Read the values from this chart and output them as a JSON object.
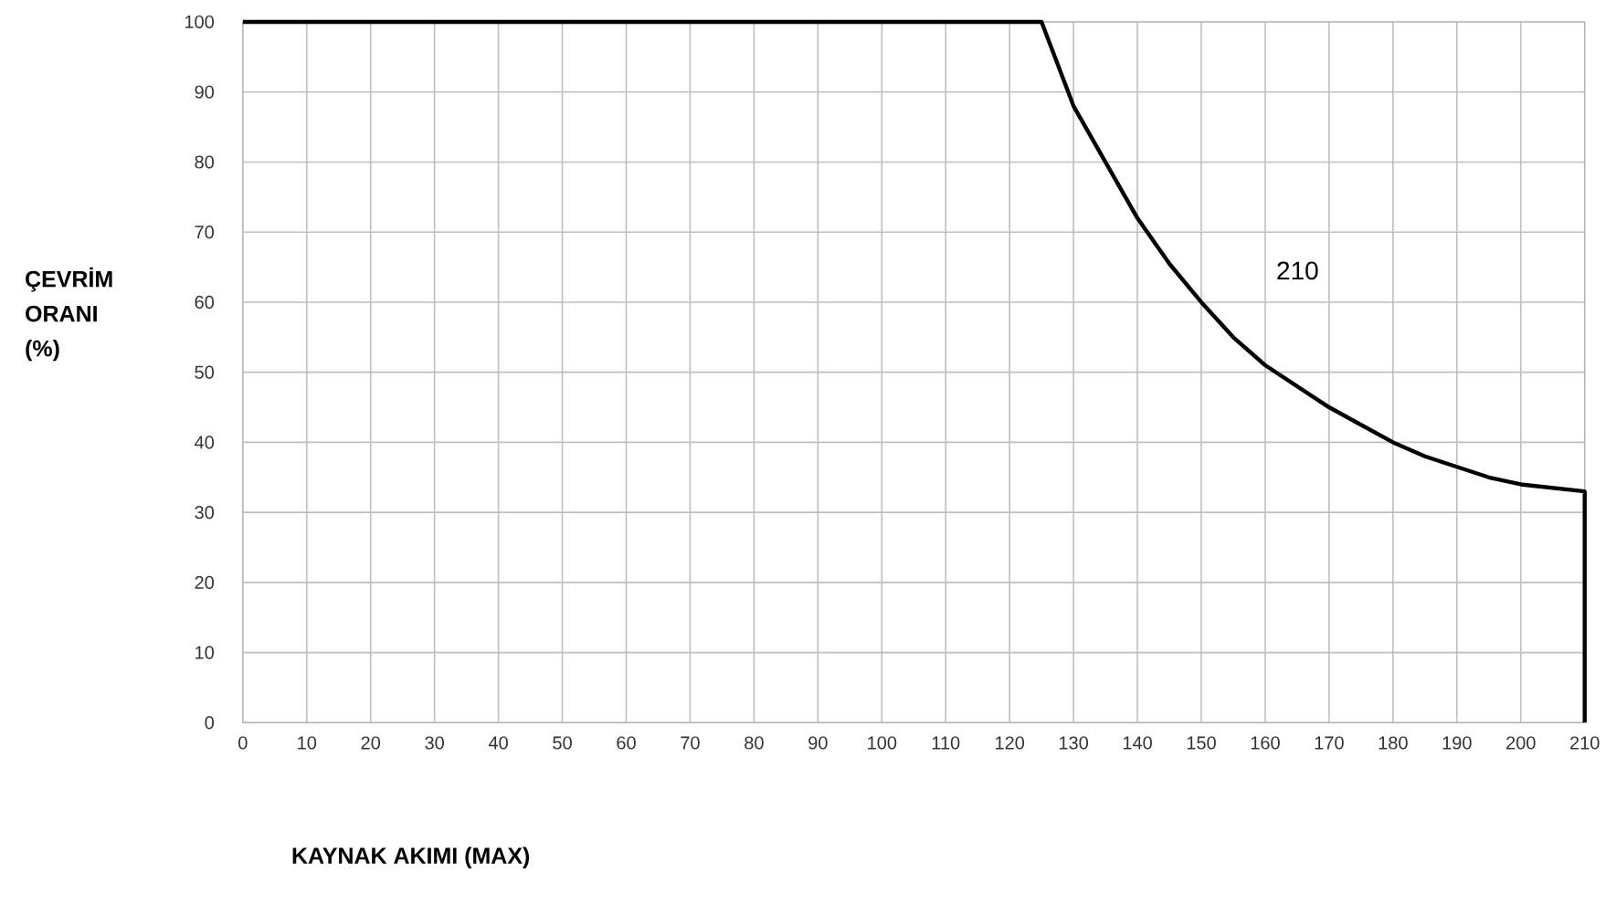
{
  "chart_data": {
    "type": "line",
    "xlabel": "KAYNAK AKIMI (MAX)",
    "ylabel": "ÇEVRİM ORANI (%)",
    "x": [
      0,
      125,
      130,
      135,
      140,
      145,
      150,
      155,
      160,
      165,
      170,
      175,
      180,
      185,
      190,
      195,
      200,
      210,
      210
    ],
    "series": [
      {
        "color": "#000000",
        "values": [
          100,
          100,
          88,
          80,
          72,
          65.5,
          60,
          55,
          51,
          48,
          45,
          42.5,
          40,
          38,
          36.5,
          35,
          34,
          33,
          0
        ]
      }
    ],
    "annotations": [
      "210"
    ],
    "xlim": [
      0,
      210
    ],
    "ylim": [
      0,
      100
    ],
    "xticks": [
      0,
      10,
      20,
      30,
      40,
      50,
      60,
      70,
      80,
      90,
      100,
      110,
      120,
      130,
      140,
      150,
      160,
      170,
      180,
      190,
      200,
      210
    ],
    "yticks": [
      0,
      10,
      20,
      30,
      40,
      50,
      60,
      70,
      80,
      90,
      100
    ],
    "grid": true,
    "marker": "none",
    "line_style": "solid"
  }
}
